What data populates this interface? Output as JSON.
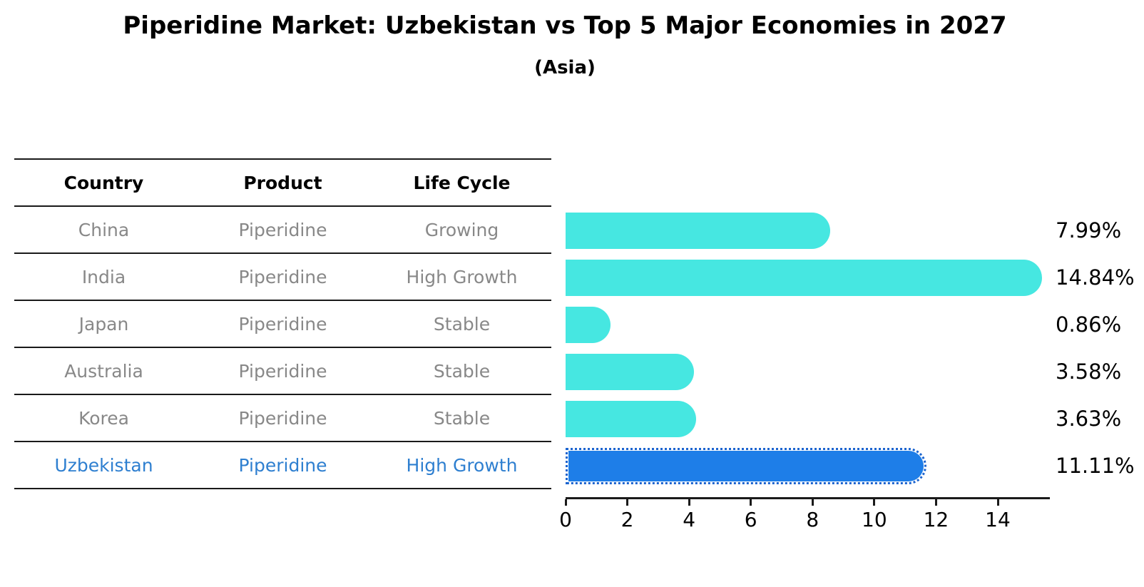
{
  "title": "Piperidine Market: Uzbekistan vs Top 5 Major Economies in 2027",
  "subtitle": "(Asia)",
  "table": {
    "headers": [
      "Country",
      "Product",
      "Life Cycle"
    ],
    "rows": [
      {
        "country": "China",
        "product": "Piperidine",
        "life_cycle": "Growing",
        "highlight": false
      },
      {
        "country": "India",
        "product": "Piperidine",
        "life_cycle": "High Growth",
        "highlight": false
      },
      {
        "country": "Japan",
        "product": "Piperidine",
        "life_cycle": "Stable",
        "highlight": false
      },
      {
        "country": "Australia",
        "product": "Piperidine",
        "life_cycle": "Stable",
        "highlight": false
      },
      {
        "country": "Korea",
        "product": "Piperidine",
        "life_cycle": "Stable",
        "highlight": false
      },
      {
        "country": "Uzbekistan",
        "product": "Piperidine",
        "life_cycle": "High Growth",
        "highlight": true
      }
    ]
  },
  "chart_data": {
    "type": "bar",
    "orientation": "horizontal",
    "title": "Piperidine Market: Uzbekistan vs Top 5 Major Economies in 2027",
    "subtitle": "(Asia)",
    "categories": [
      "China",
      "India",
      "Japan",
      "Australia",
      "Korea",
      "Uzbekistan"
    ],
    "values": [
      7.99,
      14.84,
      0.86,
      3.58,
      3.63,
      11.11
    ],
    "value_labels": [
      "7.99%",
      "14.84%",
      "0.86%",
      "3.58%",
      "3.63%",
      "11.11%"
    ],
    "x_ticks": [
      0,
      2,
      4,
      6,
      8,
      10,
      12,
      14
    ],
    "xlim": [
      0,
      15.64
    ],
    "xlabel": "",
    "ylabel": "",
    "grid": false,
    "legend": null,
    "highlight_index": 5,
    "colors": {
      "bar": "#46e7e1",
      "highlight_bar": "#1e7ee8",
      "highlight_border": "#1a63cf",
      "row_text": "#888888",
      "highlight_text": "#2e7fd0",
      "axis": "#1a1a1a",
      "label_text": "#000000"
    }
  }
}
